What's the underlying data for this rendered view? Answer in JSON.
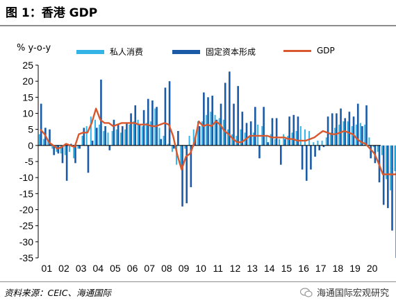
{
  "header": {
    "title": "图 1：香港 GDP"
  },
  "footer": {
    "source": "资料来源：CEIC、海通国际",
    "brand": "海通国际宏观研究"
  },
  "chart_data": {
    "type": "bar+line",
    "ylabel": "% y-o-y",
    "ylim": [
      -35,
      25
    ],
    "yticks": [
      25,
      20,
      15,
      10,
      5,
      0,
      -5,
      -10,
      -15,
      -20,
      -25,
      -30,
      -35
    ],
    "xticks": [
      "01",
      "02",
      "03",
      "04",
      "05",
      "06",
      "07",
      "08",
      "09",
      "10",
      "11",
      "12",
      "13",
      "14",
      "15",
      "16",
      "17",
      "18",
      "19",
      "20"
    ],
    "start_year": 2001,
    "legend_position": "top",
    "colors": {
      "private": "#33b3e6",
      "capital": "#1a5aa6",
      "gdp": "#d9572c",
      "axis": "#000000"
    },
    "series": [
      {
        "name": "私人消费",
        "kind": "bar",
        "values": [
          3.5,
          2.0,
          1.5,
          -1.0,
          -2.0,
          -2.5,
          -3.0,
          -2.0,
          -4.0,
          -1.0,
          3.0,
          6.0,
          9.0,
          8.0,
          6.5,
          4.5,
          4.0,
          4.5,
          5.0,
          4.0,
          5.0,
          6.5,
          7.5,
          8.0,
          6.0,
          7.0,
          7.5,
          11.5,
          5.5,
          3.0,
          0.5,
          -2.0,
          -6.0,
          -6.5,
          -1.0,
          3.0,
          5.0,
          7.5,
          7.5,
          9.5,
          10.5,
          9.5,
          8.5,
          8.0,
          5.0,
          3.5,
          3.0,
          5.0,
          4.0,
          3.0,
          4.0,
          6.5,
          6.0,
          3.0,
          3.5,
          2.0,
          2.0,
          3.5,
          3.0,
          4.0,
          4.5,
          6.0,
          5.0,
          4.5,
          1.0,
          1.5,
          1.5,
          2.5,
          4.0,
          5.5,
          6.5,
          7.5,
          7.5,
          6.0,
          6.5,
          7.0,
          6.5,
          2.5,
          -0.5,
          -2.0,
          -3.0,
          -10.5,
          -14.0,
          -8.0
        ]
      },
      {
        "name": "固定资本形成",
        "kind": "bar",
        "values": [
          13.0,
          5.5,
          5.0,
          -3.0,
          -2.5,
          -5.5,
          -11.0,
          0.5,
          -5.5,
          -1.0,
          5.5,
          -8.5,
          1.5,
          5.5,
          20.5,
          6.0,
          -1.5,
          8.0,
          6.5,
          6.0,
          7.0,
          10.0,
          12.5,
          6.5,
          11.0,
          14.5,
          14.0,
          12.0,
          2.0,
          18.0,
          20.0,
          -1.0,
          4.5,
          -19.0,
          -18.0,
          -13.0,
          2.5,
          6.0,
          16.5,
          15.0,
          15.5,
          8.0,
          13.0,
          19.5,
          23.0,
          13.0,
          18.5,
          10.5,
          7.0,
          7.5,
          12.0,
          -4.0,
          12.0,
          1.0,
          8.5,
          8.5,
          -6.0,
          2.0,
          9.0,
          9.5,
          9.0,
          -7.5,
          -11.0,
          -7.5,
          -3.5,
          -1.5,
          -0.5,
          9.0,
          10.0,
          10.0,
          11.5,
          8.5,
          10.5,
          9.0,
          13.0,
          6.0,
          12.5,
          -4.0,
          -5.5,
          -11.5,
          -18.5,
          -19.5,
          -26.5,
          -35.0
        ]
      },
      {
        "name": "GDP",
        "kind": "line",
        "values": [
          5.0,
          3.5,
          1.0,
          0.0,
          -1.0,
          -0.5,
          0.5,
          0.0,
          -0.5,
          3.5,
          4.0,
          4.0,
          7.0,
          11.5,
          8.0,
          7.0,
          7.0,
          6.0,
          6.5,
          7.0,
          7.0,
          7.0,
          7.0,
          6.5,
          6.5,
          6.5,
          6.0,
          6.0,
          6.5,
          7.0,
          6.5,
          3.0,
          -3.0,
          -7.5,
          -3.5,
          -2.5,
          1.0,
          7.5,
          6.0,
          6.5,
          6.0,
          7.5,
          6.5,
          4.5,
          3.5,
          2.0,
          1.0,
          1.0,
          2.0,
          3.0,
          3.0,
          3.0,
          3.0,
          3.0,
          2.5,
          2.5,
          2.5,
          2.5,
          2.0,
          2.0,
          1.5,
          1.5,
          1.5,
          2.0,
          2.5,
          3.5,
          4.5,
          4.0,
          3.5,
          3.5,
          4.0,
          4.5,
          4.0,
          3.5,
          2.0,
          1.0,
          0.5,
          -1.0,
          -2.5,
          -5.5,
          -9.0,
          -9.0,
          -9.0,
          -9.0
        ]
      }
    ]
  }
}
